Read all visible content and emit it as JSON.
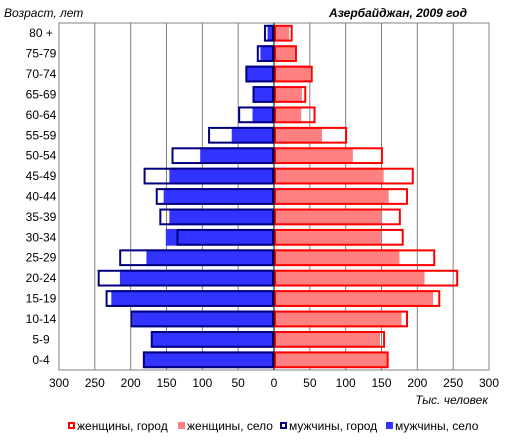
{
  "chart_data": {
    "type": "bar",
    "orientation": "horizontal-pyramid",
    "title": "Азербайджан, 2009 год",
    "ylabel": "Возраст, лет",
    "xlabel": "Тыс. человек",
    "categories": [
      "0-4",
      "5-9",
      "10-14",
      "15-19",
      "20-24",
      "25-29",
      "30-34",
      "35-39",
      "40-44",
      "45-49",
      "50-54",
      "55-59",
      "60-64",
      "65-69",
      "70-74",
      "75-79",
      "80 +"
    ],
    "x_ticks": [
      "300",
      "250",
      "200",
      "150",
      "100",
      "50",
      "0",
      "50",
      "100",
      "150",
      "200",
      "250",
      "300"
    ],
    "xlim": [
      -300,
      300
    ],
    "series": [
      {
        "name": "женщины, город",
        "side": "right",
        "style": "outline",
        "color": "#ff0000",
        "values": [
          160,
          155,
          187,
          232,
          257,
          225,
          181,
          177,
          187,
          195,
          152,
          102,
          58,
          45,
          54,
          32,
          26
        ]
      },
      {
        "name": "женщины, село",
        "side": "right",
        "style": "filled",
        "color": "#ff8080",
        "values": [
          158,
          148,
          178,
          222,
          210,
          175,
          150,
          150,
          160,
          153,
          110,
          67,
          38,
          39,
          50,
          29,
          21
        ]
      },
      {
        "name": "мужчины, город",
        "side": "left",
        "style": "outline",
        "color": "#000080",
        "values": [
          183,
          172,
          200,
          235,
          246,
          216,
          136,
          160,
          165,
          182,
          143,
          92,
          50,
          30,
          40,
          24,
          14
        ]
      },
      {
        "name": "мужчины, село",
        "side": "left",
        "style": "filled",
        "color": "#3333ff",
        "values": [
          182,
          170,
          197,
          227,
          215,
          178,
          151,
          146,
          154,
          146,
          103,
          59,
          30,
          30,
          38,
          19,
          9
        ]
      }
    ],
    "legend_position": "bottom",
    "grid": true
  }
}
